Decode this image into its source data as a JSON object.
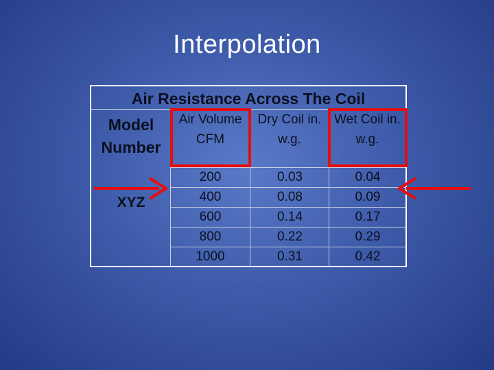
{
  "slide": {
    "title": "Interpolation"
  },
  "table": {
    "title": "Air Resistance Across The Coil",
    "model_header": "Model Number",
    "model_value": "XYZ",
    "columns": [
      {
        "key": "air",
        "header": "Air Volume CFM"
      },
      {
        "key": "dry",
        "header": "Dry Coil in. w.g."
      },
      {
        "key": "wet",
        "header": "Wet Coil in. w.g."
      }
    ],
    "rows": [
      {
        "air": "200",
        "dry": "0.03",
        "wet": "0.04"
      },
      {
        "air": "400",
        "dry": "0.08",
        "wet": "0.09"
      },
      {
        "air": "600",
        "dry": "0.14",
        "wet": "0.17"
      },
      {
        "air": "800",
        "dry": "0.22",
        "wet": "0.29"
      },
      {
        "air": "1000",
        "dry": "0.31",
        "wet": "0.42"
      }
    ]
  },
  "highlights": {
    "color": "#e80d0d"
  }
}
